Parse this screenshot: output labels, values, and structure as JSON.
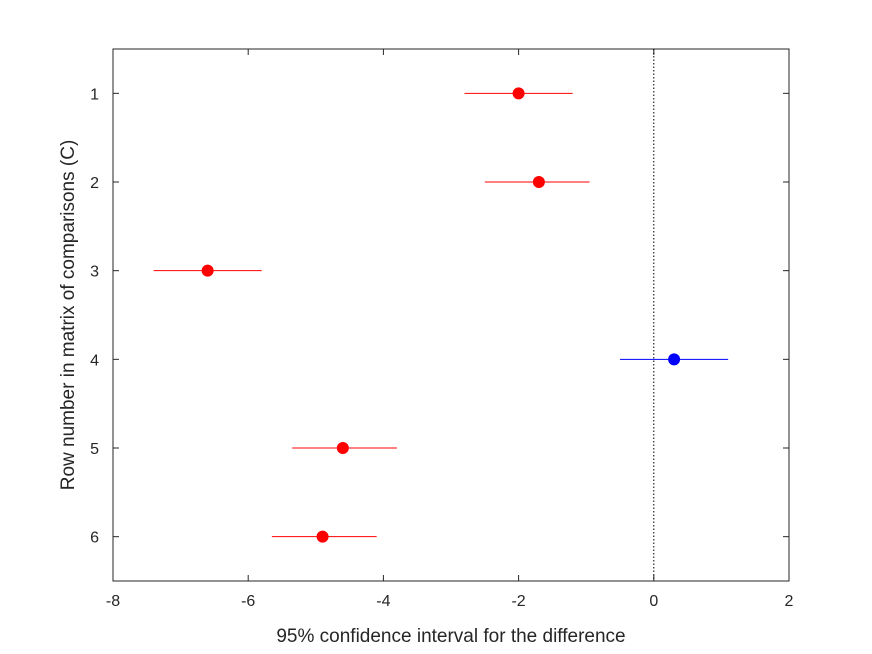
{
  "chart_data": {
    "type": "scatter",
    "title": "",
    "xlabel": "95% confidence interval for the difference",
    "ylabel": "Row number in matrix of comparisons (C)",
    "xlim": [
      -8,
      2
    ],
    "ylim": [
      0.5,
      6.5
    ],
    "y_reversed": true,
    "grid": false,
    "x_ticks": [
      "-8",
      "-6",
      "-4",
      "-2",
      "0",
      "2"
    ],
    "y_ticks": [
      "1",
      "2",
      "3",
      "4",
      "5",
      "6"
    ],
    "reference_line": {
      "x": 0,
      "style": "dotted"
    },
    "intervals": [
      {
        "row": 1,
        "estimate": -2.0,
        "lower": -2.8,
        "upper": -1.2,
        "color": "#ff0000"
      },
      {
        "row": 2,
        "estimate": -1.7,
        "lower": -2.5,
        "upper": -0.95,
        "color": "#ff0000"
      },
      {
        "row": 3,
        "estimate": -6.6,
        "lower": -7.4,
        "upper": -5.8,
        "color": "#ff0000"
      },
      {
        "row": 4,
        "estimate": 0.3,
        "lower": -0.5,
        "upper": 1.1,
        "color": "#0000ff"
      },
      {
        "row": 5,
        "estimate": -4.6,
        "lower": -5.35,
        "upper": -3.8,
        "color": "#ff0000"
      },
      {
        "row": 6,
        "estimate": -4.9,
        "lower": -5.65,
        "upper": -4.1,
        "color": "#ff0000"
      }
    ]
  }
}
